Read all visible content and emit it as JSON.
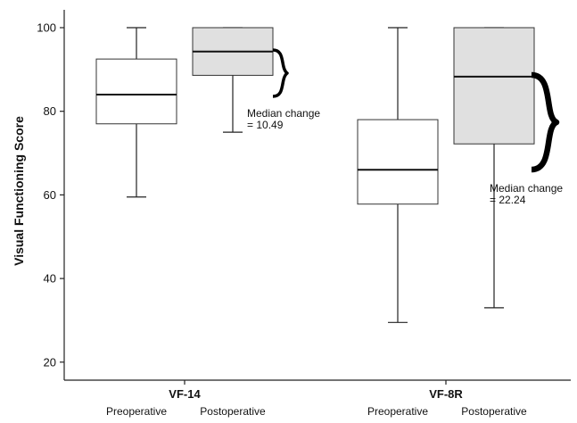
{
  "chart_data": {
    "type": "box",
    "ylabel": "Visual Functioning Score",
    "ylim": [
      18,
      104
    ],
    "yticks": [
      20,
      40,
      60,
      80,
      100
    ],
    "groups": [
      {
        "name": "VF-14",
        "boxes": [
          {
            "label": "Preoperative",
            "min": 59.5,
            "q1": 77,
            "median": 84,
            "q3": 92.5,
            "max": 100,
            "fill": "#ffffff"
          },
          {
            "label": "Postoperative",
            "min": 75,
            "q1": 88.6,
            "median": 94.3,
            "q3": 100,
            "max": 100,
            "fill": "#e0e0e0"
          }
        ],
        "annotation": {
          "line1": "Median change",
          "line2": "= 10.49"
        }
      },
      {
        "name": "VF-8R",
        "boxes": [
          {
            "label": "Preoperative",
            "min": 29.5,
            "q1": 57.8,
            "median": 66,
            "q3": 78,
            "max": 100,
            "fill": "#ffffff"
          },
          {
            "label": "Postoperative",
            "min": 33,
            "q1": 72.2,
            "median": 88.3,
            "q3": 100,
            "max": 100,
            "fill": "#e0e0e0"
          }
        ],
        "annotation": {
          "line1": "Median change",
          "line2": "= 22.24"
        }
      }
    ]
  }
}
